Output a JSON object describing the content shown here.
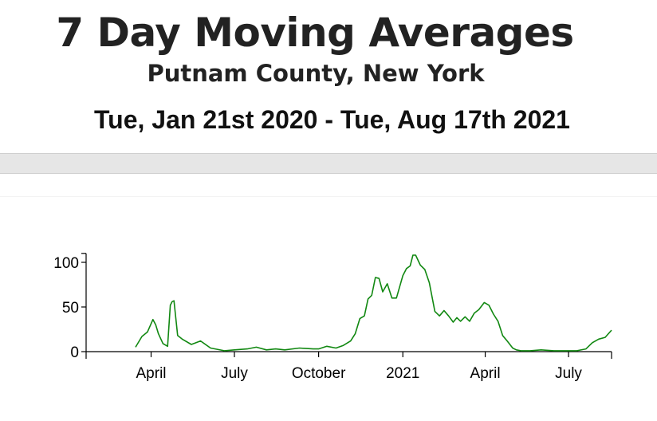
{
  "header": {
    "title": "7 Day Moving Averages",
    "subtitle": "Putnam County, New York",
    "date_range": "Tue, Jan 21st 2020 - Tue, Aug 17th 2021"
  },
  "chart_data": {
    "type": "line",
    "title": "7 Day Moving Averages",
    "xlabel": "",
    "ylabel": "",
    "xlim": [
      "2020-01-21",
      "2021-08-17"
    ],
    "ylim": [
      0,
      110
    ],
    "y_ticks": [
      0,
      50,
      100
    ],
    "x_ticks": [
      {
        "date": "2020-04-01",
        "label": "April"
      },
      {
        "date": "2020-07-01",
        "label": "July"
      },
      {
        "date": "2020-10-01",
        "label": "October"
      },
      {
        "date": "2021-01-01",
        "label": "2021"
      },
      {
        "date": "2021-04-01",
        "label": "April"
      },
      {
        "date": "2021-07-01",
        "label": "July"
      }
    ],
    "grid": false,
    "line_color": "#118811",
    "series": [
      {
        "name": "",
        "x": [
          "2020-03-15",
          "2020-03-22",
          "2020-03-28",
          "2020-04-03",
          "2020-04-06",
          "2020-04-09",
          "2020-04-14",
          "2020-04-19",
          "2020-04-22",
          "2020-04-24",
          "2020-04-26",
          "2020-04-30",
          "2020-05-05",
          "2020-05-15",
          "2020-05-25",
          "2020-06-05",
          "2020-06-20",
          "2020-07-01",
          "2020-07-15",
          "2020-07-25",
          "2020-08-05",
          "2020-08-15",
          "2020-08-25",
          "2020-09-10",
          "2020-09-25",
          "2020-10-01",
          "2020-10-10",
          "2020-10-20",
          "2020-10-28",
          "2020-11-05",
          "2020-11-10",
          "2020-11-15",
          "2020-11-20",
          "2020-11-24",
          "2020-11-28",
          "2020-12-02",
          "2020-12-06",
          "2020-12-10",
          "2020-12-15",
          "2020-12-20",
          "2020-12-25",
          "2021-01-01",
          "2021-01-05",
          "2021-01-09",
          "2021-01-12",
          "2021-01-15",
          "2021-01-20",
          "2021-01-25",
          "2021-01-30",
          "2021-02-05",
          "2021-02-10",
          "2021-02-15",
          "2021-02-20",
          "2021-02-25",
          "2021-03-01",
          "2021-03-05",
          "2021-03-10",
          "2021-03-15",
          "2021-03-20",
          "2021-03-25",
          "2021-03-31",
          "2021-04-05",
          "2021-04-10",
          "2021-04-15",
          "2021-04-20",
          "2021-04-25",
          "2021-05-01",
          "2021-05-05",
          "2021-05-10",
          "2021-05-20",
          "2021-06-01",
          "2021-06-15",
          "2021-07-01",
          "2021-07-10",
          "2021-07-20",
          "2021-07-27",
          "2021-08-03",
          "2021-08-10",
          "2021-08-17"
        ],
        "y": [
          5,
          17,
          22,
          36,
          30,
          20,
          9,
          6,
          52,
          56,
          57,
          18,
          14,
          8,
          12,
          4,
          1,
          2,
          3,
          5,
          2,
          3,
          2,
          4,
          3,
          3,
          6,
          4,
          7,
          12,
          20,
          37,
          40,
          59,
          63,
          83,
          82,
          67,
          76,
          60,
          60,
          85,
          93,
          96,
          108,
          108,
          97,
          92,
          77,
          45,
          40,
          46,
          40,
          33,
          38,
          34,
          39,
          34,
          43,
          47,
          55,
          52,
          42,
          34,
          18,
          12,
          4,
          2,
          1,
          1,
          2,
          1,
          1,
          1,
          3,
          10,
          14,
          16,
          24
        ]
      }
    ]
  }
}
